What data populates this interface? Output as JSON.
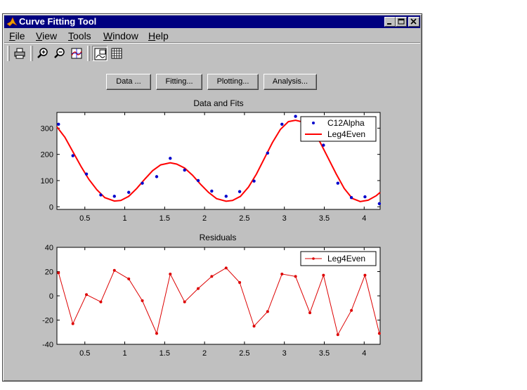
{
  "window": {
    "title": "Curve Fitting Tool"
  },
  "menu": [
    "File",
    "View",
    "Tools",
    "Window",
    "Help"
  ],
  "toolbar_icons": [
    "print-icon",
    "zoom-in-icon",
    "zoom-out-icon",
    "data-cursor-icon",
    "legend-icon",
    "grid-icon"
  ],
  "buttons": {
    "data": "Data ...",
    "fitting": "Fitting...",
    "plotting": "Plotting...",
    "analysis": "Analysis..."
  },
  "colors": {
    "titlebar": "#000080",
    "fit_line": "#ff0000",
    "data_points": "#0000cc",
    "face": "#c0c0c0"
  },
  "chart_data": [
    {
      "type": "scatter",
      "title": "Data and Fits",
      "xlim": [
        0.15,
        4.2
      ],
      "ylim": [
        -10,
        360
      ],
      "xticks": [
        0.5,
        1,
        1.5,
        2,
        2.5,
        3,
        3.5,
        4
      ],
      "xtick_labels": [
        "0.5",
        "1",
        "1.5",
        "2",
        "2.5",
        "3",
        "3.5",
        "4"
      ],
      "yticks": [
        0,
        100,
        200,
        300
      ],
      "ytick_labels": [
        "0",
        "100",
        "200",
        "300"
      ],
      "legend": [
        "C12Alpha",
        "Leg4Even"
      ],
      "legend_position": "top-right",
      "series": [
        {
          "name": "C12Alpha",
          "kind": "points",
          "x": [
            0.17,
            0.35,
            0.52,
            0.7,
            0.87,
            1.05,
            1.22,
            1.4,
            1.57,
            1.75,
            1.92,
            2.09,
            2.27,
            2.44,
            2.62,
            2.79,
            2.97,
            3.14,
            3.32,
            3.49,
            3.67,
            3.84,
            4.01,
            4.19
          ],
          "y": [
            315,
            195,
            125,
            45,
            40,
            55,
            90,
            115,
            185,
            140,
            100,
            60,
            40,
            58,
            98,
            205,
            315,
            345,
            265,
            235,
            90,
            35,
            38,
            12
          ]
        },
        {
          "name": "Leg4Even",
          "kind": "line",
          "x": [
            0.15,
            0.25,
            0.35,
            0.45,
            0.55,
            0.65,
            0.75,
            0.87,
            0.95,
            1.05,
            1.15,
            1.25,
            1.35,
            1.45,
            1.57,
            1.65,
            1.75,
            1.85,
            1.95,
            2.05,
            2.15,
            2.27,
            2.35,
            2.45,
            2.55,
            2.65,
            2.75,
            2.85,
            2.95,
            3.05,
            3.14,
            3.25,
            3.35,
            3.45,
            3.55,
            3.65,
            3.75,
            3.85,
            3.95,
            4.05,
            4.15,
            4.2
          ],
          "y": [
            305,
            265,
            210,
            155,
            105,
            65,
            35,
            22,
            24,
            40,
            70,
            105,
            138,
            160,
            168,
            163,
            148,
            120,
            86,
            55,
            31,
            21,
            24,
            40,
            75,
            125,
            185,
            245,
            295,
            325,
            330,
            322,
            292,
            245,
            185,
            125,
            70,
            32,
            20,
            25,
            42,
            55
          ]
        }
      ]
    },
    {
      "type": "line",
      "title": "Residuals",
      "xlim": [
        0.15,
        4.2
      ],
      "ylim": [
        -40,
        40
      ],
      "xticks": [
        0.5,
        1,
        1.5,
        2,
        2.5,
        3,
        3.5,
        4
      ],
      "xtick_labels": [
        "0.5",
        "1",
        "1.5",
        "2",
        "2.5",
        "3",
        "3.5",
        "4"
      ],
      "yticks": [
        -40,
        -20,
        0,
        20,
        40
      ],
      "ytick_labels": [
        "-40",
        "-20",
        "0",
        "20",
        "40"
      ],
      "legend": [
        "Leg4Even"
      ],
      "legend_position": "top-right",
      "series": [
        {
          "name": "Leg4Even",
          "x": [
            0.17,
            0.35,
            0.52,
            0.7,
            0.87,
            1.05,
            1.22,
            1.4,
            1.57,
            1.75,
            1.92,
            2.09,
            2.27,
            2.44,
            2.62,
            2.79,
            2.97,
            3.14,
            3.32,
            3.49,
            3.67,
            3.84,
            4.01,
            4.19
          ],
          "y": [
            19,
            -23,
            1,
            -5,
            21,
            14,
            -4,
            -31,
            18,
            -5,
            6,
            16,
            23,
            11,
            -25,
            -13,
            18,
            16,
            -14,
            17,
            -32,
            -12,
            17,
            -31
          ]
        }
      ]
    }
  ]
}
